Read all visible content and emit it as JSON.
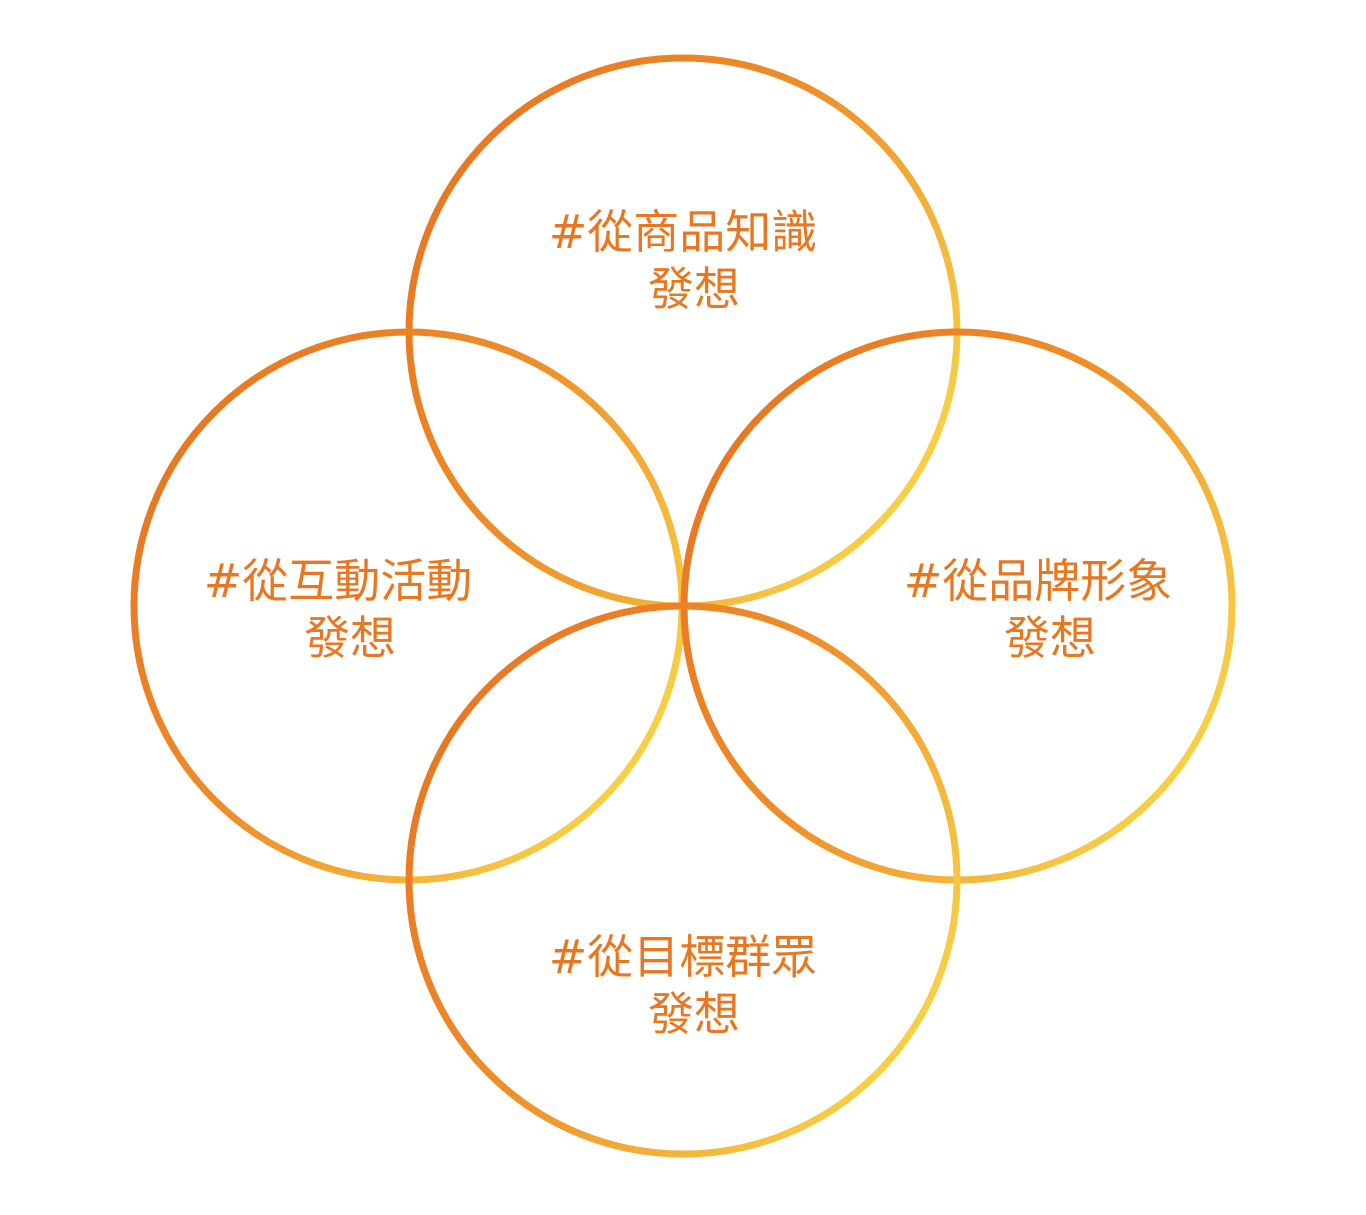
{
  "colors": {
    "stroke_dark": "#E87722",
    "stroke_light": "#F8D448",
    "text": "#E87722",
    "background": "#FFFFFF"
  },
  "circles": [
    {
      "id": "top",
      "line1": "#從商品知識",
      "line2": "發想"
    },
    {
      "id": "left",
      "line1": "#從互動活動",
      "line2": "發想"
    },
    {
      "id": "right",
      "line1": "#從品牌形象",
      "line2": "發想"
    },
    {
      "id": "bottom",
      "line1": "#從目標群眾",
      "line2": "發想"
    }
  ]
}
